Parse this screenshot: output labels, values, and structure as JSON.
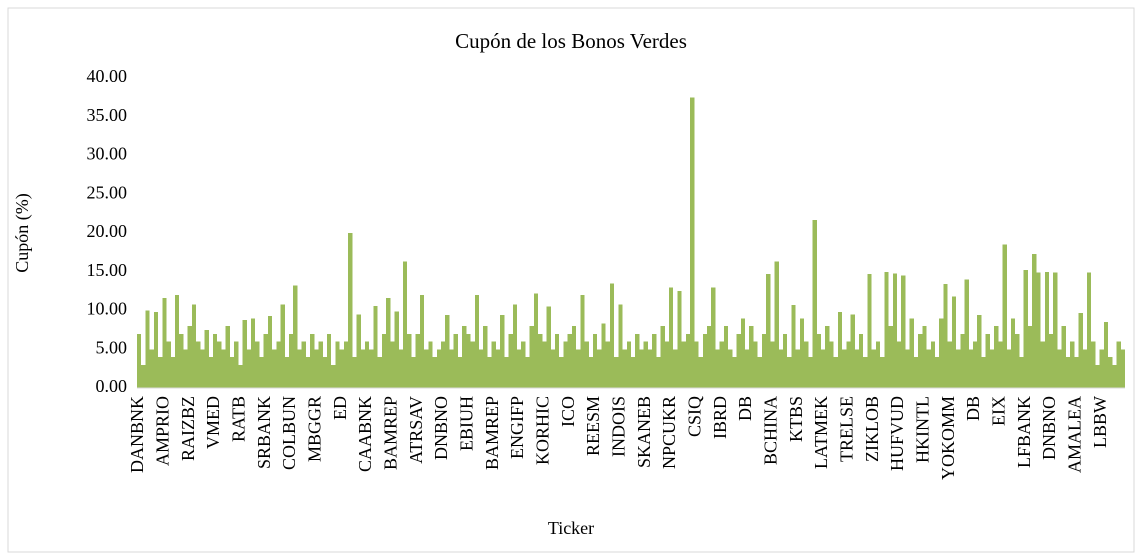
{
  "chart_data": {
    "type": "bar",
    "title": "Cupón de los Bonos Verdes",
    "x_label": "Ticker",
    "y_label": "Cupón (%)",
    "color": "#9bbb59",
    "grid": false,
    "ylim": [
      0,
      40
    ],
    "yticks": [
      {
        "value": 0,
        "label": "0.00"
      },
      {
        "value": 5,
        "label": "5.00"
      },
      {
        "value": 10,
        "label": "10.00"
      },
      {
        "value": 15,
        "label": "15.00"
      },
      {
        "value": 20,
        "label": "20.00"
      },
      {
        "value": 25,
        "label": "25.00"
      },
      {
        "value": 30,
        "label": "30.00"
      },
      {
        "value": 35,
        "label": "35.00"
      },
      {
        "value": 40,
        "label": "40.00"
      }
    ],
    "categories": [
      "DANBNK",
      null,
      null,
      null,
      null,
      null,
      "AMPRIO",
      null,
      null,
      null,
      null,
      null,
      "RAIZBZ",
      null,
      null,
      null,
      null,
      null,
      "VMED",
      null,
      null,
      null,
      null,
      null,
      "RATB",
      null,
      null,
      null,
      null,
      null,
      "SRBANK",
      null,
      null,
      null,
      null,
      null,
      "COLBUN",
      null,
      null,
      null,
      null,
      null,
      "MBGGR",
      null,
      null,
      null,
      null,
      null,
      "ED",
      null,
      null,
      null,
      null,
      null,
      "CAABNK",
      null,
      null,
      null,
      null,
      null,
      "BAMREP",
      null,
      null,
      null,
      null,
      null,
      "ATRSAV",
      null,
      null,
      null,
      null,
      null,
      "DNBNO",
      null,
      null,
      null,
      null,
      null,
      "EBIUH",
      null,
      null,
      null,
      null,
      null,
      "BAMREP",
      null,
      null,
      null,
      null,
      null,
      "ENGIFP",
      null,
      null,
      null,
      null,
      null,
      "KORHIC",
      null,
      null,
      null,
      null,
      null,
      "ICO",
      null,
      null,
      null,
      null,
      null,
      "REESM",
      null,
      null,
      null,
      null,
      null,
      "INDOIS",
      null,
      null,
      null,
      null,
      null,
      "SKANEB",
      null,
      null,
      null,
      null,
      null,
      "NPCUKR",
      null,
      null,
      null,
      null,
      null,
      "CSIQ",
      null,
      null,
      null,
      null,
      null,
      "IBRD",
      null,
      null,
      null,
      null,
      null,
      "DB",
      null,
      null,
      null,
      null,
      null,
      "BCHINA",
      null,
      null,
      null,
      null,
      null,
      "KTBS",
      null,
      null,
      null,
      null,
      null,
      "LATMEK",
      null,
      null,
      null,
      null,
      null,
      "TRELSE",
      null,
      null,
      null,
      null,
      null,
      "ZIKLOB",
      null,
      null,
      null,
      null,
      null,
      "HUFVUD",
      null,
      null,
      null,
      null,
      null,
      "HKINTL",
      null,
      null,
      null,
      null,
      null,
      "YOKOMM",
      null,
      null,
      null,
      null,
      null,
      "DB",
      null,
      null,
      null,
      null,
      null,
      "EIX",
      null,
      null,
      null,
      null,
      null,
      "LFBANK",
      null,
      null,
      null,
      null,
      null,
      "DNBNO",
      null,
      null,
      null,
      null,
      null,
      "AMALEA",
      null,
      null,
      null,
      null,
      null,
      "LBBW",
      null,
      null,
      null,
      null,
      null
    ],
    "values": [
      7,
      3,
      10,
      5,
      9.8,
      4,
      11.6,
      6,
      4,
      12,
      7,
      5,
      8,
      10.8,
      6,
      5,
      7.5,
      4,
      7,
      6,
      5,
      8,
      4,
      6,
      3,
      8.8,
      5,
      9,
      6,
      4,
      7,
      9.3,
      5,
      6,
      10.8,
      4,
      7,
      13.2,
      5,
      6,
      4,
      7,
      5,
      6,
      4,
      7,
      3,
      6,
      5,
      6,
      20,
      4,
      9.5,
      5,
      6,
      5,
      10.6,
      4,
      7,
      11.6,
      6,
      9.9,
      5,
      16.3,
      7,
      4,
      7,
      12,
      5,
      6,
      4,
      5,
      6,
      9.4,
      5,
      7,
      4,
      8,
      7,
      6,
      12,
      5,
      8,
      4,
      6,
      5,
      9.4,
      4,
      7,
      10.8,
      5,
      6,
      4,
      8,
      12.2,
      7,
      6,
      10.5,
      5,
      7,
      4,
      6,
      7,
      8,
      5,
      12,
      6,
      4,
      7,
      5,
      8.3,
      6,
      13.5,
      4,
      10.8,
      5,
      6,
      4,
      7,
      5,
      6,
      5,
      7,
      4,
      8,
      6,
      13,
      5,
      12.5,
      6,
      7,
      37.5,
      6,
      4,
      7,
      8,
      13,
      5,
      6,
      8,
      5,
      4,
      7,
      9,
      5,
      8,
      6,
      4,
      7,
      14.7,
      6,
      16.3,
      5,
      7,
      4,
      10.7,
      5,
      9,
      6,
      4,
      21.7,
      7,
      5,
      8,
      6,
      4,
      9.8,
      5,
      6,
      9.5,
      5,
      7,
      4,
      14.7,
      5,
      6,
      4,
      15,
      8,
      14.8,
      6,
      14.5,
      5,
      9,
      4,
      7,
      8,
      5,
      6,
      4,
      9,
      13.4,
      6,
      11.8,
      5,
      7,
      14,
      5,
      6,
      9.4,
      4,
      7,
      5,
      8,
      6,
      18.5,
      5,
      9,
      7,
      4,
      15.2,
      8,
      17.3,
      14.9,
      6,
      15,
      7,
      14.9,
      5,
      8,
      4,
      6,
      4,
      9.7,
      5,
      14.9,
      6,
      3,
      5,
      8.5,
      4,
      3,
      6,
      5
    ]
  }
}
